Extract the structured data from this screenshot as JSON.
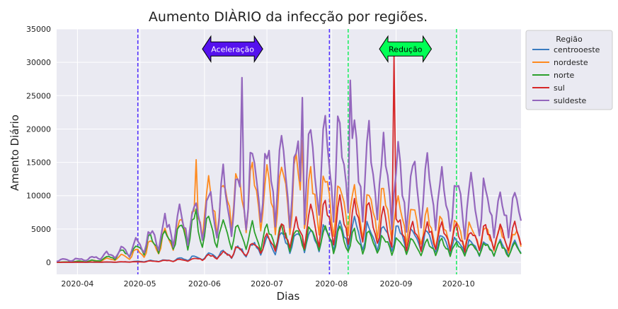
{
  "chart_data": {
    "type": "line",
    "title": "Aumento DIÀRIO da infecção por regiões.",
    "xlabel": "Dias",
    "ylabel": "Amento Diário",
    "x_range": [
      "2020-03-22",
      "2020-10-31"
    ],
    "ylim": [
      -1800,
      35000
    ],
    "y_ticks": [
      0,
      5000,
      10000,
      15000,
      20000,
      25000,
      30000,
      35000
    ],
    "x_ticks": [
      {
        "date": "2020-04-01",
        "label": "2020-04"
      },
      {
        "date": "2020-05-01",
        "label": "2020-05"
      },
      {
        "date": "2020-06-01",
        "label": "2020-06"
      },
      {
        "date": "2020-07-01",
        "label": "2020-07"
      },
      {
        "date": "2020-08-01",
        "label": "2020-08"
      },
      {
        "date": "2020-09-01",
        "label": "2020-09"
      },
      {
        "date": "2020-10-01",
        "label": "2020-10"
      }
    ],
    "grid": true,
    "legend": {
      "title": "Região",
      "placement": "outside-top-right"
    },
    "vlines": [
      {
        "date": "2020-04-30",
        "color": "#5533ff"
      },
      {
        "date": "2020-07-31",
        "color": "#5533ff"
      },
      {
        "date": "2020-08-09",
        "color": "#22ee66"
      },
      {
        "date": "2020-09-30",
        "color": "#22ee66"
      }
    ],
    "annotations": [
      {
        "text": "Aceleração",
        "from": "2020-05-31",
        "to": "2020-06-29",
        "y": 32000,
        "facecolor": "#5511ee",
        "textcolor": "#ffffff"
      },
      {
        "text": "Redução",
        "from": "2020-08-24",
        "to": "2020-09-18",
        "y": 32000,
        "facecolor": "#00ff55",
        "textcolor": "#000000"
      }
    ],
    "series": [
      {
        "name": "centrooeste",
        "color": "#3a7bbf",
        "points": [
          [
            "2020-03-22",
            0
          ],
          [
            "2020-04-20",
            30
          ],
          [
            "2020-05-15",
            300
          ],
          [
            "2020-05-31",
            800
          ],
          [
            "2020-06-15",
            1500
          ],
          [
            "2020-06-30",
            2500
          ],
          [
            "2020-07-15",
            3500
          ],
          [
            "2020-07-25",
            3800
          ],
          [
            "2020-08-05",
            4500
          ],
          [
            "2020-08-20",
            4200
          ],
          [
            "2020-09-05",
            3600
          ],
          [
            "2020-09-20",
            3000
          ],
          [
            "2020-10-05",
            2500
          ],
          [
            "2020-10-20",
            2200
          ],
          [
            "2020-10-31",
            2100
          ]
        ]
      },
      {
        "name": "nordeste",
        "color": "#ff8a1e",
        "points": [
          [
            "2020-03-22",
            0
          ],
          [
            "2020-04-05",
            100
          ],
          [
            "2020-04-20",
            600
          ],
          [
            "2020-05-01",
            1500
          ],
          [
            "2020-05-15",
            3500
          ],
          [
            "2020-05-28",
            6500
          ],
          [
            "2020-06-05",
            9000
          ],
          [
            "2020-06-20",
            10500
          ],
          [
            "2020-07-05",
            10500
          ],
          [
            "2020-07-20",
            10000
          ],
          [
            "2020-08-01",
            9500
          ],
          [
            "2020-08-15",
            8500
          ],
          [
            "2020-09-01",
            7000
          ],
          [
            "2020-09-15",
            5500
          ],
          [
            "2020-10-01",
            4300
          ],
          [
            "2020-10-15",
            3800
          ],
          [
            "2020-10-31",
            3400
          ]
        ]
      },
      {
        "name": "norte",
        "color": "#2ca02c",
        "points": [
          [
            "2020-03-22",
            0
          ],
          [
            "2020-04-10",
            250
          ],
          [
            "2020-04-25",
            1500
          ],
          [
            "2020-05-10",
            3200
          ],
          [
            "2020-05-25",
            4600
          ],
          [
            "2020-06-10",
            4600
          ],
          [
            "2020-06-25",
            4200
          ],
          [
            "2020-07-10",
            3900
          ],
          [
            "2020-07-25",
            3600
          ],
          [
            "2020-08-10",
            3300
          ],
          [
            "2020-08-25",
            2900
          ],
          [
            "2020-09-10",
            2500
          ],
          [
            "2020-09-25",
            2300
          ],
          [
            "2020-10-10",
            2100
          ],
          [
            "2020-10-31",
            1900
          ]
        ]
      },
      {
        "name": "sul",
        "color": "#d62728",
        "points": [
          [
            "2020-03-22",
            0
          ],
          [
            "2020-05-01",
            80
          ],
          [
            "2020-05-25",
            400
          ],
          [
            "2020-06-10",
            1100
          ],
          [
            "2020-06-25",
            2300
          ],
          [
            "2020-07-10",
            4200
          ],
          [
            "2020-07-25",
            5800
          ],
          [
            "2020-08-05",
            6500
          ],
          [
            "2020-08-20",
            5800
          ],
          [
            "2020-09-05",
            4500
          ],
          [
            "2020-09-20",
            4000
          ],
          [
            "2020-10-05",
            3700
          ],
          [
            "2020-10-20",
            3800
          ],
          [
            "2020-10-31",
            4000
          ]
        ]
      },
      {
        "name": "suldeste",
        "color": "#9467bd",
        "points": [
          [
            "2020-03-22",
            300
          ],
          [
            "2020-04-05",
            500
          ],
          [
            "2020-04-20",
            1300
          ],
          [
            "2020-05-01",
            2600
          ],
          [
            "2020-05-15",
            5000
          ],
          [
            "2020-05-30",
            7000
          ],
          [
            "2020-06-10",
            9200
          ],
          [
            "2020-06-25",
            11500
          ],
          [
            "2020-07-10",
            13000
          ],
          [
            "2020-07-25",
            14500
          ],
          [
            "2020-08-05",
            15000
          ],
          [
            "2020-08-20",
            13500
          ],
          [
            "2020-09-05",
            11500
          ],
          [
            "2020-09-20",
            10000
          ],
          [
            "2020-10-05",
            9000
          ],
          [
            "2020-10-20",
            8300
          ],
          [
            "2020-10-31",
            8000
          ]
        ]
      }
    ],
    "spikes": [
      {
        "series": "suldeste",
        "date": "2020-06-19",
        "value": 27700
      },
      {
        "series": "suldeste",
        "date": "2020-08-10",
        "value": 27300
      },
      {
        "series": "suldeste",
        "date": "2020-07-18",
        "value": 24700
      },
      {
        "series": "suldeste",
        "date": "2020-07-29",
        "value": 22000
      },
      {
        "series": "nordeste",
        "date": "2020-05-28",
        "value": 15400
      },
      {
        "series": "nordeste",
        "date": "2020-07-18",
        "value": 18300
      },
      {
        "series": "sul",
        "date": "2020-08-31",
        "value": 31000
      },
      {
        "series": "norte",
        "date": "2020-05-28",
        "value": 8000
      }
    ]
  }
}
